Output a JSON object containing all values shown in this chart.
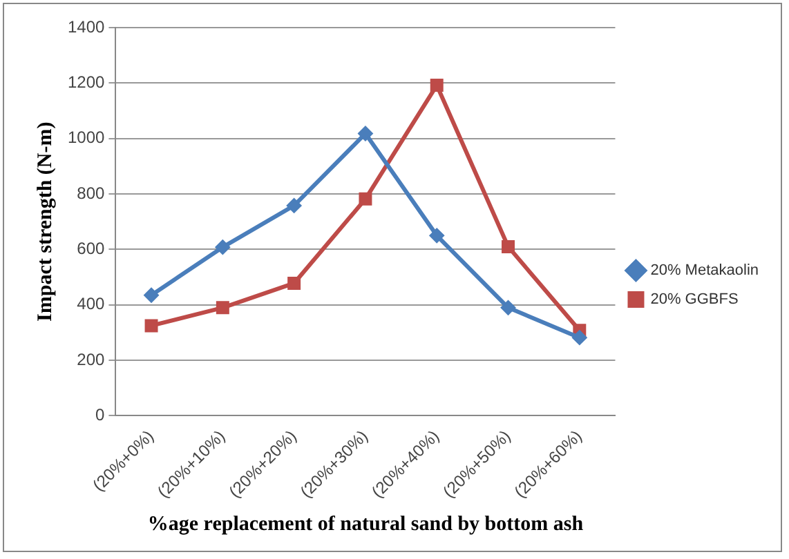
{
  "chart_data": {
    "type": "line",
    "xlabel": "%age replacement of natural sand by bottom ash",
    "ylabel": "Impact strength (N-m)",
    "categories": [
      "(20%+0%)",
      "(20%+10%)",
      "(20%+20%)",
      "(20%+30%)",
      "(20%+40%)",
      "(20%+50%)",
      "(20%+60%)"
    ],
    "series": [
      {
        "name": "20% Metakaolin",
        "color": "#4a7ebb",
        "marker": "diamond",
        "values": [
          435,
          608,
          758,
          1018,
          650,
          390,
          282
        ]
      },
      {
        "name": "20% GGBFS",
        "color": "#be4b48",
        "marker": "square",
        "values": [
          325,
          390,
          478,
          782,
          1192,
          610,
          308
        ]
      }
    ],
    "ylim": [
      0,
      1400
    ],
    "yticks": [
      0,
      200,
      400,
      600,
      800,
      1000,
      1200,
      1400
    ],
    "grid": "y",
    "legend": "right"
  }
}
